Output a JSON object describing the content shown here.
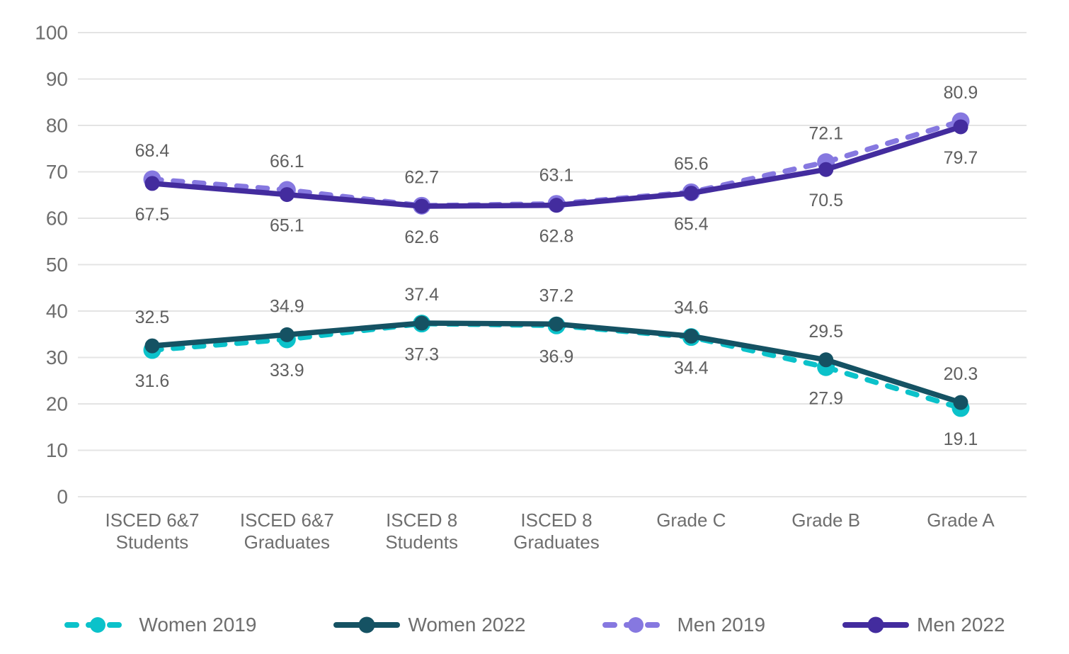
{
  "chart_data": {
    "type": "line",
    "title": "",
    "xlabel": "",
    "ylabel": "",
    "ylim": [
      0,
      100
    ],
    "ytick_step": 10,
    "yticks": [
      0,
      10,
      20,
      30,
      40,
      50,
      60,
      70,
      80,
      90,
      100
    ],
    "grid": true,
    "legend_position": "bottom",
    "categories": [
      [
        "ISCED 6&7",
        "Students"
      ],
      [
        "ISCED 6&7",
        "Graduates"
      ],
      [
        "ISCED 8",
        "Students"
      ],
      [
        "ISCED 8",
        "Graduates"
      ],
      [
        "Grade C"
      ],
      [
        "Grade B"
      ],
      [
        "Grade A"
      ]
    ],
    "series": [
      {
        "name": "Women 2019",
        "color": "#0BC2CA",
        "style": "dashed",
        "marker": "circle",
        "label_position": "below",
        "values": [
          31.6,
          33.9,
          37.3,
          36.9,
          34.4,
          27.9,
          19.1
        ]
      },
      {
        "name": "Women 2022",
        "color": "#155263",
        "style": "solid",
        "marker": "circle",
        "label_position": "above",
        "values": [
          32.5,
          34.9,
          37.4,
          37.2,
          34.6,
          29.5,
          20.3
        ]
      },
      {
        "name": "Men 2019",
        "color": "#8678E0",
        "style": "dashed",
        "marker": "circle",
        "label_position": "above",
        "values": [
          68.4,
          66.1,
          62.7,
          63.1,
          65.6,
          72.1,
          80.9
        ]
      },
      {
        "name": "Men 2022",
        "color": "#432C9E",
        "style": "solid",
        "marker": "circle",
        "label_position": "below",
        "values": [
          67.5,
          65.1,
          62.6,
          62.8,
          65.4,
          70.5,
          79.7
        ]
      }
    ],
    "colors": {
      "grid": "#E4E4E4",
      "axis_text": "#6E6E6E",
      "data_label": "#5F5F5F",
      "background": "#FFFFFF"
    }
  }
}
